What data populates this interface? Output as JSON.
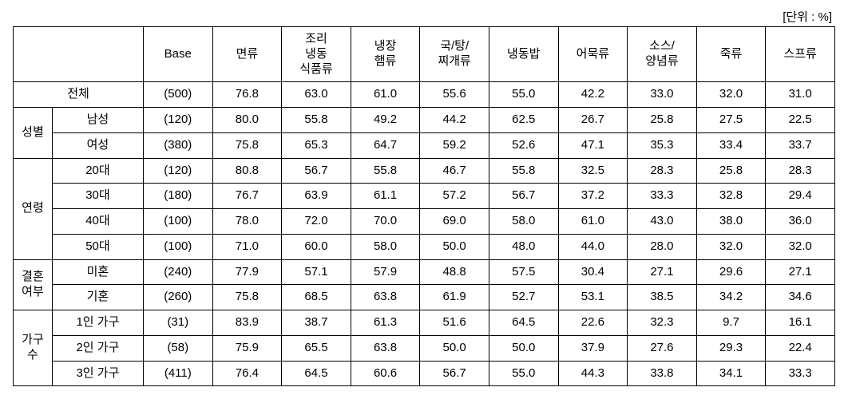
{
  "unit_label": "[단위 : %]",
  "headers": {
    "cat_blank": "",
    "base": "Base",
    "c1": "면류",
    "c2": "조리\n냉동\n식품류",
    "c3": "냉장\n햄류",
    "c4": "국/탕/\n찌개류",
    "c5": "냉동밥",
    "c6": "어묵류",
    "c7": "소스/\n양념류",
    "c8": "죽류",
    "c9": "스프류"
  },
  "total": {
    "label": "전체",
    "base": "(500)",
    "v": [
      "76.8",
      "63.0",
      "61.0",
      "55.6",
      "55.0",
      "42.2",
      "33.0",
      "32.0",
      "31.0"
    ]
  },
  "groups": [
    {
      "label": "성별",
      "rows": [
        {
          "sub": "남성",
          "base": "(120)",
          "v": [
            "80.0",
            "55.8",
            "49.2",
            "44.2",
            "62.5",
            "26.7",
            "25.8",
            "27.5",
            "22.5"
          ]
        },
        {
          "sub": "여성",
          "base": "(380)",
          "v": [
            "75.8",
            "65.3",
            "64.7",
            "59.2",
            "52.6",
            "47.1",
            "35.3",
            "33.4",
            "33.7"
          ]
        }
      ]
    },
    {
      "label": "연령",
      "rows": [
        {
          "sub": "20대",
          "base": "(120)",
          "v": [
            "80.8",
            "56.7",
            "55.8",
            "46.7",
            "55.8",
            "32.5",
            "28.3",
            "25.8",
            "28.3"
          ]
        },
        {
          "sub": "30대",
          "base": "(180)",
          "v": [
            "76.7",
            "63.9",
            "61.1",
            "57.2",
            "56.7",
            "37.2",
            "33.3",
            "32.8",
            "29.4"
          ]
        },
        {
          "sub": "40대",
          "base": "(100)",
          "v": [
            "78.0",
            "72.0",
            "70.0",
            "69.0",
            "58.0",
            "61.0",
            "43.0",
            "38.0",
            "36.0"
          ]
        },
        {
          "sub": "50대",
          "base": "(100)",
          "v": [
            "71.0",
            "60.0",
            "58.0",
            "50.0",
            "48.0",
            "44.0",
            "28.0",
            "32.0",
            "32.0"
          ]
        }
      ]
    },
    {
      "label": "결혼\n여부",
      "rows": [
        {
          "sub": "미혼",
          "base": "(240)",
          "v": [
            "77.9",
            "57.1",
            "57.9",
            "48.8",
            "57.5",
            "30.4",
            "27.1",
            "29.6",
            "27.1"
          ]
        },
        {
          "sub": "기혼",
          "base": "(260)",
          "v": [
            "75.8",
            "68.5",
            "63.8",
            "61.9",
            "52.7",
            "53.1",
            "38.5",
            "34.2",
            "34.6"
          ]
        }
      ]
    },
    {
      "label": "가구\n수",
      "rows": [
        {
          "sub": "1인 가구",
          "base": "(31)",
          "v": [
            "83.9",
            "38.7",
            "61.3",
            "51.6",
            "64.5",
            "22.6",
            "32.3",
            "9.7",
            "16.1"
          ]
        },
        {
          "sub": "2인 가구",
          "base": "(58)",
          "v": [
            "75.9",
            "65.5",
            "63.8",
            "50.0",
            "50.0",
            "37.9",
            "27.6",
            "29.3",
            "22.4"
          ]
        },
        {
          "sub": "3인 가구",
          "base": "(411)",
          "v": [
            "76.4",
            "64.5",
            "60.6",
            "56.7",
            "55.0",
            "44.3",
            "33.8",
            "34.1",
            "33.3"
          ]
        }
      ]
    }
  ]
}
